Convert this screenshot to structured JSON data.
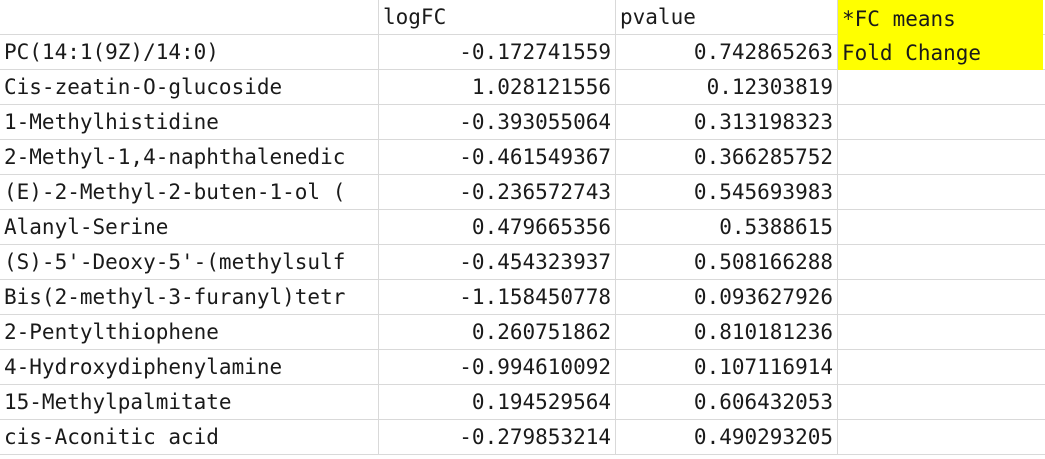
{
  "header": {
    "col_a": "",
    "col_b": "logFC",
    "col_c": "pvalue"
  },
  "note": {
    "line1": "*FC means",
    "line2": "Fold Change",
    "color": "#ffff00"
  },
  "rows": [
    {
      "name": "PC(14:1(9Z)/14:0)",
      "logfc": "-0.172741559",
      "pvalue": "0.742865263"
    },
    {
      "name": "Cis-zeatin-O-glucoside",
      "logfc": "1.028121556",
      "pvalue": "0.12303819"
    },
    {
      "name": "1-Methylhistidine",
      "logfc": "-0.393055064",
      "pvalue": "0.313198323"
    },
    {
      "name": "2-Methyl-1,4-naphthalenedic",
      "logfc": "-0.461549367",
      "pvalue": "0.366285752"
    },
    {
      "name": "(E)-2-Methyl-2-buten-1-ol (",
      "logfc": "-0.236572743",
      "pvalue": "0.545693983"
    },
    {
      "name": "Alanyl-Serine",
      "logfc": "0.479665356",
      "pvalue": "0.5388615"
    },
    {
      "name": "(S)-5'-Deoxy-5'-(methylsulf",
      "logfc": "-0.454323937",
      "pvalue": "0.508166288"
    },
    {
      "name": "Bis(2-methyl-3-furanyl)tetr",
      "logfc": "-1.158450778",
      "pvalue": "0.093627926"
    },
    {
      "name": "2-Pentylthiophene",
      "logfc": "0.260751862",
      "pvalue": "0.810181236"
    },
    {
      "name": "4-Hydroxydiphenylamine",
      "logfc": "-0.994610092",
      "pvalue": "0.107116914"
    },
    {
      "name": "15-Methylpalmitate",
      "logfc": "0.194529564",
      "pvalue": "0.606432053"
    },
    {
      "name": "cis-Aconitic acid",
      "logfc": "-0.279853214",
      "pvalue": "0.490293205"
    }
  ]
}
